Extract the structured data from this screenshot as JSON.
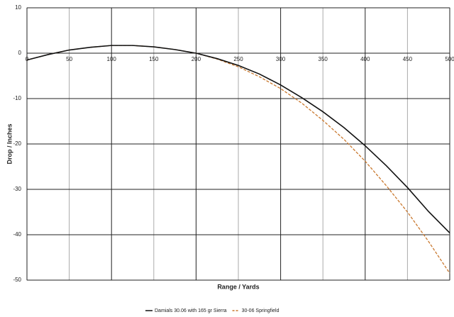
{
  "chart_data": {
    "type": "line",
    "x_label": "Range / Yards",
    "y_label": "Drop / Inches",
    "x": [
      0,
      25,
      50,
      75,
      100,
      125,
      150,
      175,
      200,
      225,
      250,
      275,
      300,
      325,
      350,
      375,
      400,
      425,
      450,
      475,
      500
    ],
    "series": [
      {
        "name": "Damials 30.06 with 165 gr Sierra",
        "color": "#111111",
        "dash": false,
        "values": [
          -1.5,
          -0.3,
          0.7,
          1.3,
          1.7,
          1.7,
          1.4,
          0.8,
          0,
          -1.2,
          -2.7,
          -4.6,
          -7.0,
          -9.8,
          -12.9,
          -16.4,
          -20.4,
          -24.8,
          -29.6,
          -34.9,
          -39.6
        ]
      },
      {
        "name": "30-06 Springfield",
        "color": "#c9782e",
        "dash": true,
        "values": [
          -1.5,
          -0.3,
          0.7,
          1.3,
          1.7,
          1.7,
          1.4,
          0.8,
          0,
          -1.3,
          -3.0,
          -5.2,
          -7.8,
          -11.0,
          -14.8,
          -19.0,
          -23.8,
          -29.2,
          -35.0,
          -41.5,
          -48.5
        ]
      }
    ],
    "xlim": [
      0,
      500
    ],
    "xticks": [
      0,
      50,
      100,
      150,
      200,
      250,
      300,
      350,
      400,
      450,
      500
    ],
    "ylim": [
      -50,
      10
    ],
    "yticks": [
      10,
      0,
      -10,
      -20,
      -30,
      -40,
      -50
    ],
    "grid": true,
    "legend": "bottom"
  }
}
